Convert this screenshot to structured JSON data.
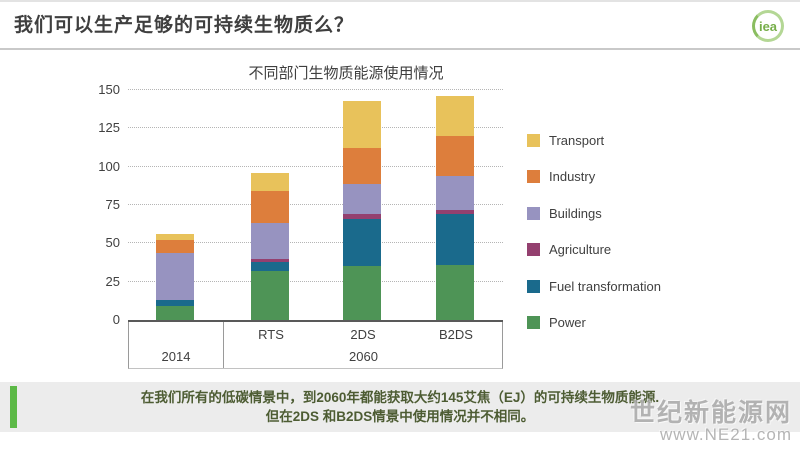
{
  "header": {
    "title": "我们可以生产足够的可持续生物质么？",
    "logo_text": "iea"
  },
  "chart_data": {
    "type": "bar",
    "stacked": true,
    "title": "不同部门生物质能源使用情况",
    "categories": [
      "2014",
      "RTS",
      "2DS",
      "B2DS"
    ],
    "x_axis": {
      "upper_labels": [
        "",
        "RTS",
        "2DS",
        "B2DS"
      ],
      "groups": [
        {
          "label": "2014",
          "start": 0,
          "end": 0
        },
        {
          "label": "2060",
          "start": 1,
          "end": 3
        }
      ]
    },
    "series": [
      {
        "name": "Power",
        "color": "#4e9456",
        "values": [
          9,
          32,
          35,
          36
        ]
      },
      {
        "name": "Fuel transformation",
        "color": "#1a6a8c",
        "values": [
          4,
          6,
          31,
          33
        ]
      },
      {
        "name": "Agriculture",
        "color": "#94406f",
        "values": [
          0,
          2,
          3,
          3
        ]
      },
      {
        "name": "Buildings",
        "color": "#9793c0",
        "values": [
          31,
          23,
          20,
          22
        ]
      },
      {
        "name": "Industry",
        "color": "#dd7e3c",
        "values": [
          8,
          21,
          23,
          26
        ]
      },
      {
        "name": "Transport",
        "color": "#e8c25b",
        "values": [
          4,
          12,
          31,
          26
        ]
      }
    ],
    "legend_order": [
      "Transport",
      "Industry",
      "Buildings",
      "Agriculture",
      "Fuel transformation",
      "Power"
    ],
    "legend_position": "right",
    "y_ticks": [
      0,
      25,
      50,
      75,
      100,
      125,
      150
    ],
    "ylim": [
      0,
      150
    ],
    "grid": "horizontal-dotted"
  },
  "banner": {
    "line1": "在我们所有的低碳情景中，到2060年都能获取大约145艾焦（EJ）的可持续生物质能源.",
    "line2": "但在2DS 和B2DS情景中使用情况并不相同。",
    "accent_color": "#5cb947"
  },
  "watermark": {
    "line1": "世纪新能源网",
    "line2": "www.NE21.com"
  }
}
